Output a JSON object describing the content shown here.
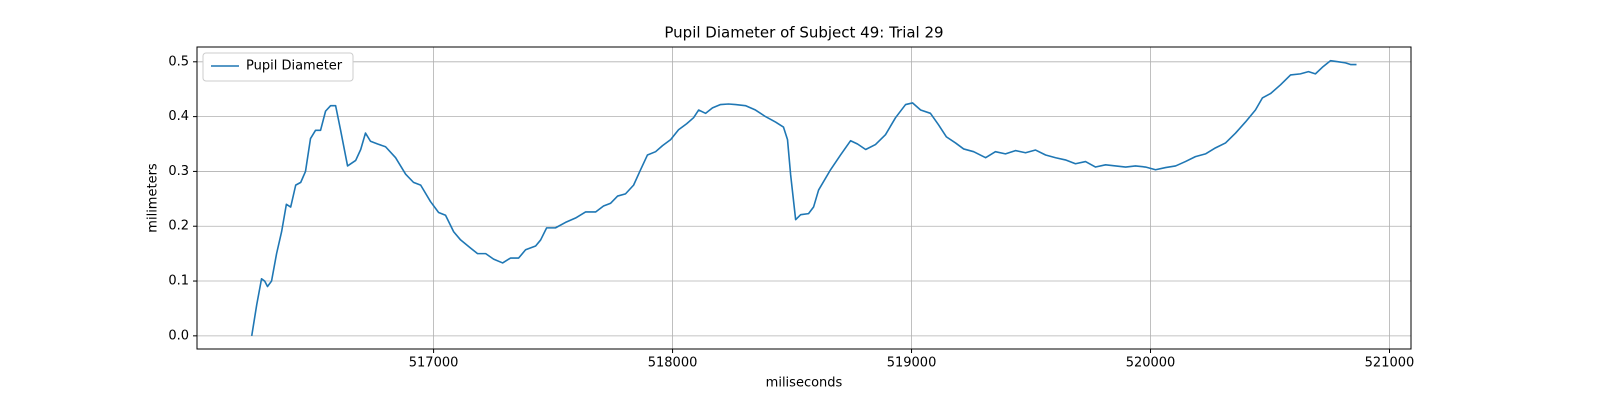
{
  "chart_data": {
    "type": "line",
    "title": "Pupil Diameter of Subject 49: Trial 29",
    "x_label": "miliseconds",
    "y_label": "milimeters",
    "x": [
      516239,
      516260,
      516280,
      516293,
      516305,
      516322,
      516343,
      516364,
      516384,
      516402,
      516423,
      516444,
      516464,
      516485,
      516506,
      516527,
      516548,
      516569,
      516590,
      516611,
      516640,
      516674,
      516695,
      516715,
      516736,
      516766,
      516799,
      516841,
      516883,
      516916,
      516946,
      516987,
      517021,
      517050,
      517084,
      517113,
      517155,
      517184,
      517218,
      517251,
      517289,
      517322,
      517356,
      517385,
      517427,
      517448,
      517473,
      517510,
      517552,
      517594,
      517636,
      517678,
      517711,
      517741,
      517770,
      517803,
      517837,
      517866,
      517895,
      517929,
      517958,
      517992,
      518025,
      518059,
      518088,
      518109,
      518138,
      518167,
      518201,
      518234,
      518264,
      518305,
      518347,
      518389,
      518431,
      518464,
      518481,
      518494,
      518515,
      518536,
      518569,
      518590,
      518611,
      518661,
      518703,
      518745,
      518774,
      518808,
      518849,
      518891,
      518933,
      518975,
      519004,
      519038,
      519079,
      519113,
      519146,
      519184,
      519218,
      519260,
      519310,
      519351,
      519393,
      519435,
      519477,
      519519,
      519561,
      519603,
      519644,
      519686,
      519728,
      519770,
      519812,
      519854,
      519896,
      519937,
      519979,
      520021,
      520063,
      520105,
      520146,
      520188,
      520230,
      520272,
      520314,
      520356,
      520397,
      520439,
      520468,
      520502,
      520544,
      520586,
      520627,
      520661,
      520690,
      520719,
      520753,
      520787,
      520816,
      520837,
      520862
    ],
    "series": [
      {
        "name": "Pupil Diameter",
        "color": "#1f77b4",
        "values": [
          0.0,
          0.057,
          0.104,
          0.1,
          0.09,
          0.1,
          0.15,
          0.19,
          0.24,
          0.235,
          0.275,
          0.28,
          0.3,
          0.36,
          0.375,
          0.375,
          0.41,
          0.42,
          0.42,
          0.375,
          0.31,
          0.32,
          0.34,
          0.37,
          0.355,
          0.35,
          0.345,
          0.325,
          0.295,
          0.28,
          0.275,
          0.245,
          0.225,
          0.22,
          0.19,
          0.175,
          0.16,
          0.15,
          0.15,
          0.14,
          0.133,
          0.142,
          0.142,
          0.157,
          0.164,
          0.175,
          0.197,
          0.197,
          0.207,
          0.215,
          0.226,
          0.226,
          0.237,
          0.242,
          0.255,
          0.259,
          0.275,
          0.303,
          0.33,
          0.336,
          0.347,
          0.358,
          0.376,
          0.387,
          0.398,
          0.412,
          0.406,
          0.416,
          0.422,
          0.423,
          0.422,
          0.42,
          0.412,
          0.4,
          0.39,
          0.381,
          0.358,
          0.294,
          0.212,
          0.221,
          0.223,
          0.235,
          0.266,
          0.303,
          0.33,
          0.356,
          0.35,
          0.34,
          0.349,
          0.367,
          0.398,
          0.422,
          0.425,
          0.412,
          0.406,
          0.385,
          0.363,
          0.352,
          0.341,
          0.336,
          0.325,
          0.336,
          0.332,
          0.338,
          0.334,
          0.339,
          0.33,
          0.325,
          0.321,
          0.314,
          0.318,
          0.308,
          0.312,
          0.31,
          0.308,
          0.31,
          0.308,
          0.303,
          0.307,
          0.31,
          0.318,
          0.327,
          0.332,
          0.343,
          0.352,
          0.37,
          0.39,
          0.412,
          0.434,
          0.442,
          0.458,
          0.476,
          0.478,
          0.482,
          0.478,
          0.49,
          0.502,
          0.5,
          0.498,
          0.495,
          0.495
        ]
      }
    ],
    "xlim": [
      516010,
      521090
    ],
    "ylim": [
      -0.024,
      0.527
    ],
    "xticks": [
      517000,
      518000,
      519000,
      520000,
      521000
    ],
    "yticks": [
      {
        "value": 0,
        "label": "0.0"
      },
      0.1,
      0.2,
      0.3,
      0.4,
      0.5
    ],
    "grid": true,
    "legend": "upper-left"
  }
}
